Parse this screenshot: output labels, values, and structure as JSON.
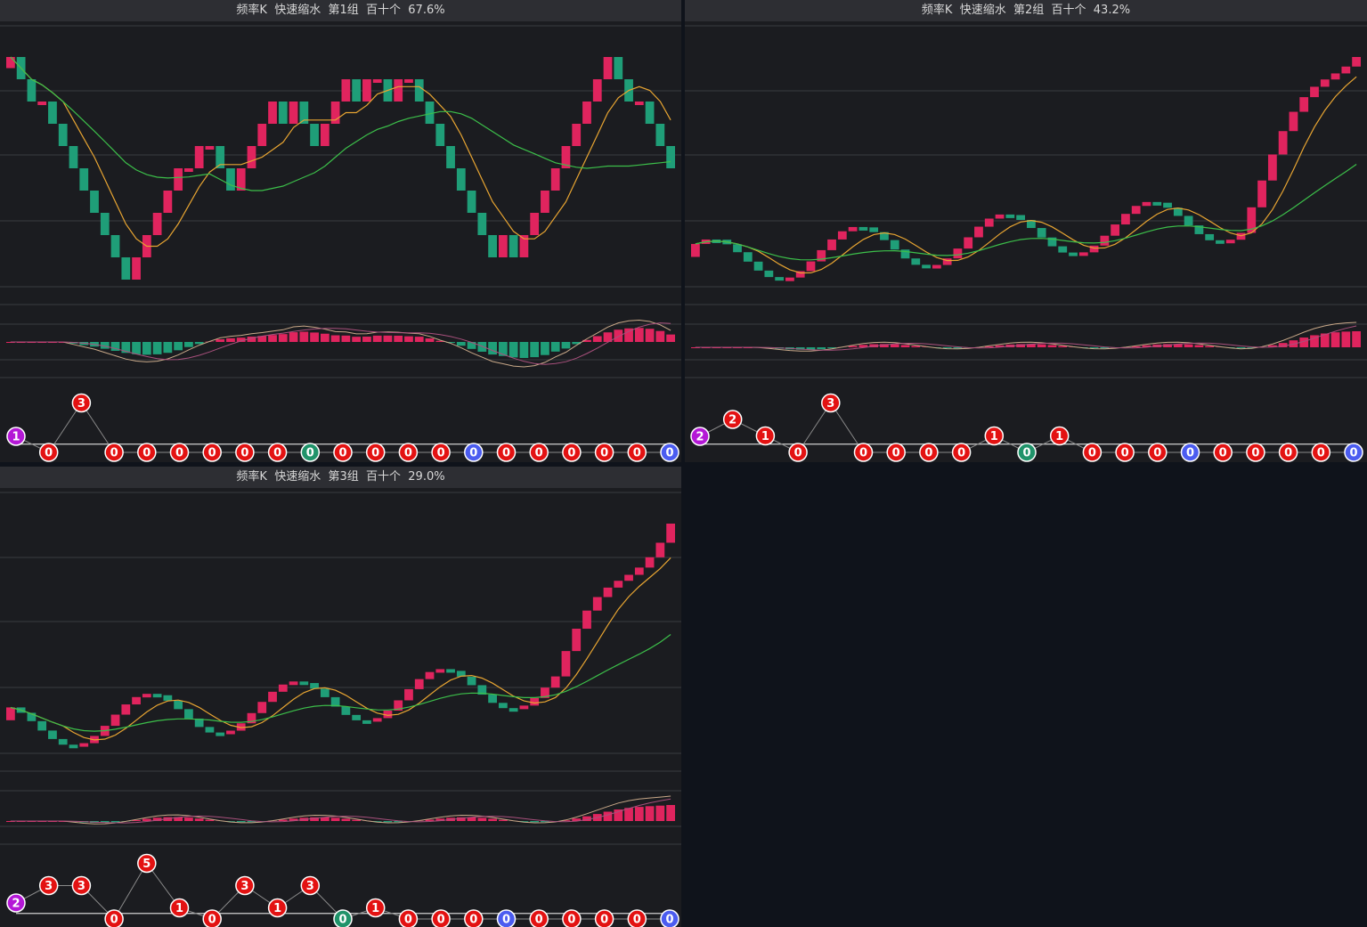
{
  "colors": {
    "up": "#e0245e",
    "down": "#1f9e78",
    "ma_short": "#e8a532",
    "ma_long": "#3cbf4a",
    "macd_dif": "#c8a888",
    "macd_dea": "#a8507c",
    "badge_red": "#e31212",
    "badge_green": "#20936a",
    "badge_blue": "#4b5cf0",
    "badge_purple": "#b418d6"
  },
  "panels": [
    {
      "title": "频率K  快速缩水  第1组  百十个  67.6%",
      "chart_data": {
        "type": "candlestick",
        "path": [
          [
            0,
            1
          ],
          [
            1,
            -1
          ],
          [
            2,
            -1
          ],
          [
            3,
            0
          ],
          [
            4,
            -1
          ],
          [
            5,
            -1
          ],
          [
            6,
            -1
          ],
          [
            7,
            -1
          ],
          [
            8,
            -1
          ],
          [
            9,
            -1
          ],
          [
            10,
            -1
          ],
          [
            11,
            -1
          ],
          [
            12,
            1
          ],
          [
            13,
            1
          ],
          [
            14,
            1
          ],
          [
            15,
            1
          ],
          [
            16,
            1
          ],
          [
            17,
            0
          ],
          [
            18,
            1
          ],
          [
            19,
            0
          ],
          [
            20,
            -1
          ],
          [
            21,
            -1
          ],
          [
            22,
            1
          ],
          [
            23,
            1
          ],
          [
            24,
            1
          ],
          [
            25,
            1
          ],
          [
            26,
            -1
          ],
          [
            27,
            1
          ],
          [
            28,
            -1
          ],
          [
            29,
            -1
          ],
          [
            30,
            1
          ],
          [
            31,
            1
          ],
          [
            32,
            1
          ],
          [
            33,
            -1
          ],
          [
            34,
            1
          ],
          [
            35,
            0
          ],
          [
            36,
            -1
          ],
          [
            37,
            1
          ],
          [
            38,
            0
          ],
          [
            39,
            -1
          ],
          [
            40,
            -1
          ],
          [
            41,
            -1
          ],
          [
            42,
            -1
          ],
          [
            43,
            -1
          ],
          [
            44,
            -1
          ],
          [
            45,
            -1
          ],
          [
            46,
            -1
          ],
          [
            47,
            1
          ],
          [
            48,
            -1
          ],
          [
            49,
            1
          ],
          [
            50,
            1
          ],
          [
            51,
            1
          ],
          [
            52,
            1
          ],
          [
            53,
            1
          ],
          [
            54,
            1
          ],
          [
            55,
            1
          ],
          [
            56,
            1
          ]
        ]
      },
      "macd_hist": "neg-then-pos",
      "badges": {
        "first": {
          "value": "1",
          "color": "purple"
        },
        "values": [
          "0",
          "3",
          "0",
          "0",
          "0",
          "0",
          "0",
          "0",
          "0",
          "0",
          "0",
          "0",
          "0",
          "0",
          "0",
          "0",
          "0",
          "0",
          "0",
          "0"
        ],
        "colors": [
          "red",
          "red",
          "red",
          "red",
          "red",
          "red",
          "red",
          "red",
          "green",
          "red",
          "red",
          "red",
          "red",
          "blue",
          "red",
          "red",
          "red",
          "red",
          "red",
          "blue"
        ],
        "levels": [
          0,
          3,
          0,
          0,
          0,
          0,
          0,
          0,
          0,
          0,
          0,
          0,
          0,
          0,
          0,
          0,
          0,
          0,
          0,
          0
        ]
      }
    },
    {
      "title": "频率K  快速缩水  第2组  百十个  43.2%",
      "badges": {
        "first": {
          "value": "2",
          "color": "purple"
        },
        "values": [
          "2",
          "1",
          "0",
          "3",
          "0",
          "0",
          "0",
          "0",
          "1",
          "0",
          "1",
          "0",
          "0",
          "0",
          "0",
          "0",
          "0",
          "0",
          "0",
          "0"
        ],
        "colors": [
          "red",
          "red",
          "red",
          "red",
          "red",
          "red",
          "red",
          "red",
          "red",
          "green",
          "red",
          "red",
          "red",
          "red",
          "blue",
          "red",
          "red",
          "red",
          "red",
          "blue"
        ],
        "levels": [
          2,
          1,
          0,
          3,
          0,
          0,
          0,
          0,
          1,
          0,
          1,
          0,
          0,
          0,
          0,
          0,
          0,
          0,
          0,
          0
        ]
      }
    },
    {
      "title": "频率K  快速缩水  第3组  百十个  29.0%",
      "badges": {
        "first": {
          "value": "2",
          "color": "purple"
        },
        "values": [
          "3",
          "3",
          "0",
          "5",
          "1",
          "0",
          "3",
          "1",
          "3",
          "0",
          "1",
          "0",
          "0",
          "0",
          "0",
          "0",
          "0",
          "0",
          "0",
          "0"
        ],
        "colors": [
          "red",
          "red",
          "red",
          "red",
          "red",
          "red",
          "red",
          "red",
          "red",
          "green",
          "red",
          "red",
          "red",
          "red",
          "blue",
          "red",
          "red",
          "red",
          "red",
          "blue"
        ],
        "levels": [
          3,
          3,
          0,
          5,
          1,
          0,
          3,
          1,
          3,
          0,
          1,
          0,
          0,
          0,
          0,
          0,
          0,
          0,
          0,
          0
        ]
      }
    }
  ]
}
